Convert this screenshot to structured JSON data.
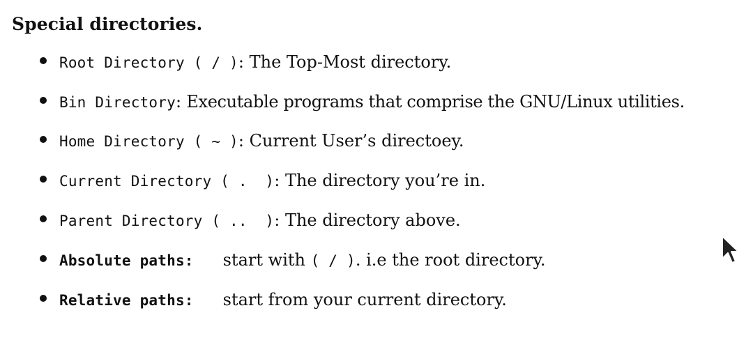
{
  "heading": "Special directories.",
  "items": [
    {
      "term": "Root Directory ( / )",
      "sep": ":",
      "desc": " The Top-Most directory."
    },
    {
      "term": "Bin Directory",
      "sep": ":",
      "desc": " Executable programs that comprise the GNU/Linux utilities."
    },
    {
      "term": "Home Directory ( ~ )",
      "sep": ":",
      "desc": " Current User’s directoey."
    },
    {
      "term": "Current Directory ( .  )",
      "sep": ":",
      "desc": " The directory you’re in."
    },
    {
      "term": "Parent Directory ( ..  )",
      "sep": ":",
      "desc": " The directory above."
    },
    {
      "term": "Absolute paths:",
      "desc_pre": "start with ",
      "desc_code": "( / )",
      "desc_post": ". i.e the root directory."
    },
    {
      "term": "Relative paths:",
      "desc": "start from your current directory."
    }
  ],
  "icons": {
    "cursor": "mouse-pointer-icon"
  }
}
